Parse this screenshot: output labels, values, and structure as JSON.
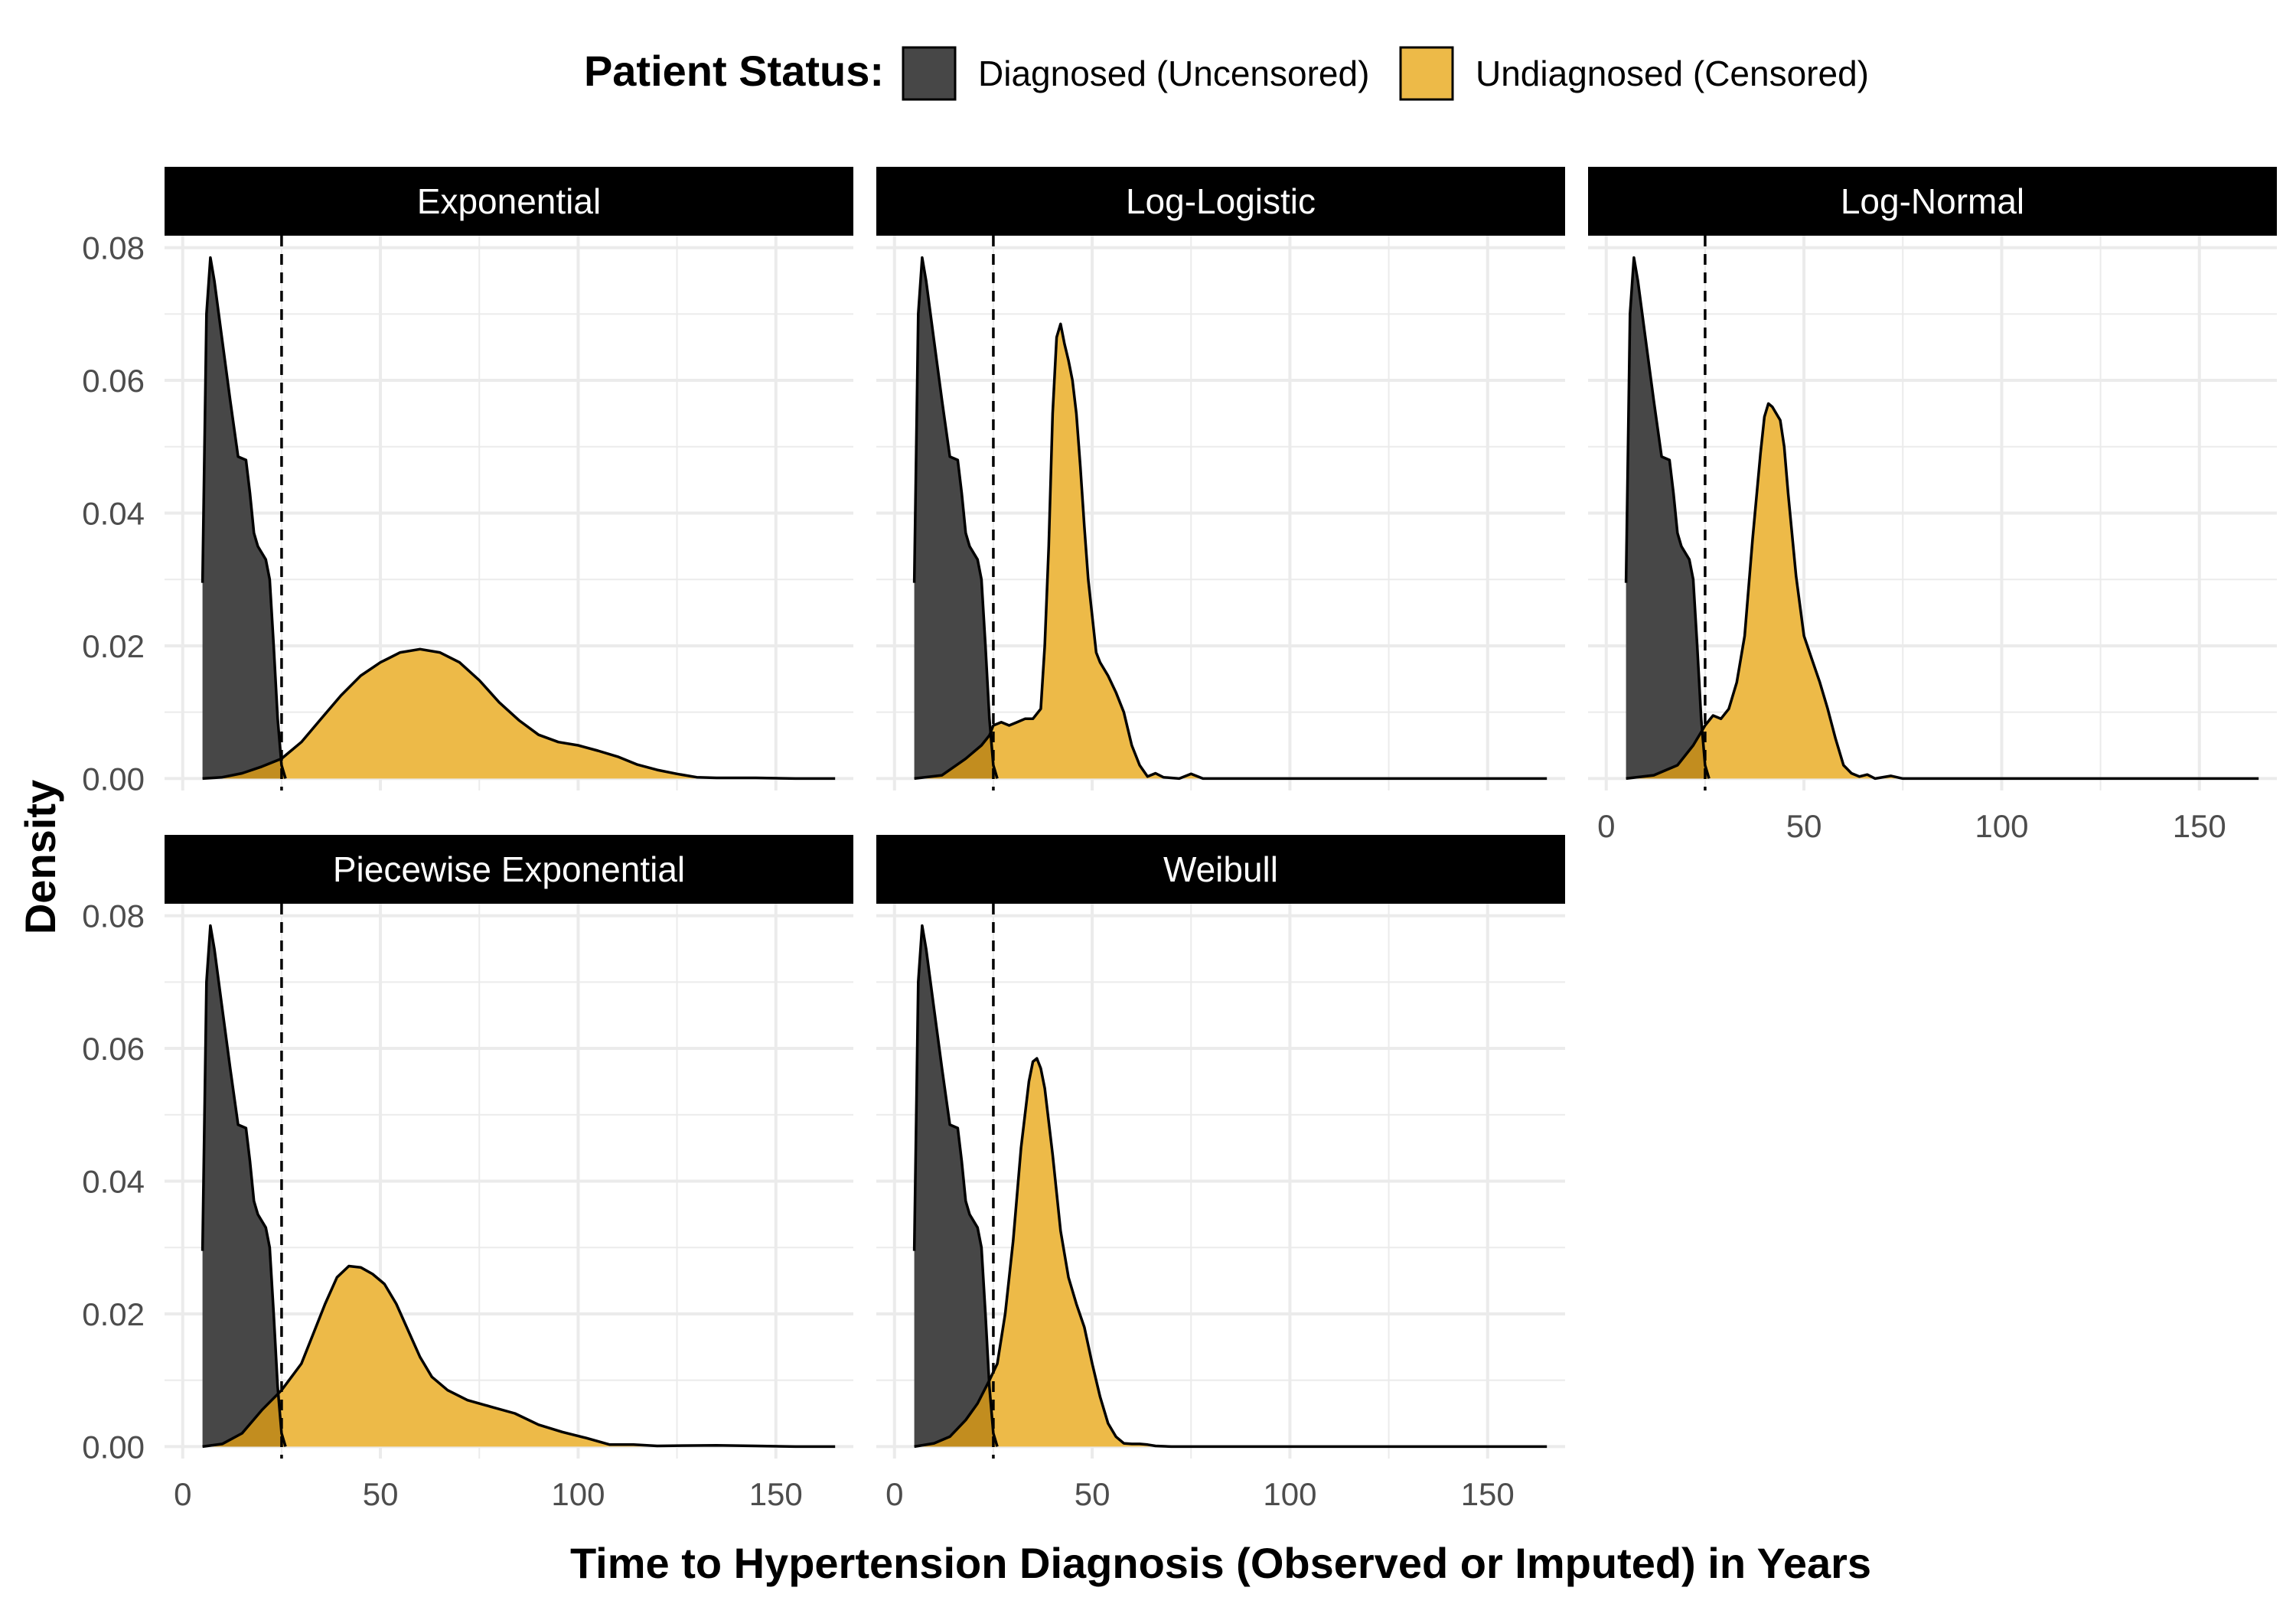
{
  "chart_data": {
    "type": "area",
    "subtype": "density",
    "facet_layout": "3x2 grid, 5 panels",
    "legend_title": "Patient Status:",
    "legend_position": "top",
    "xlabel": "Time to Hypertension Diagnosis (Observed or Imputed) in Years",
    "ylabel": "Density",
    "xlim": [
      0,
      165
    ],
    "ylim": [
      0,
      0.08
    ],
    "x_ticks": [
      0,
      50,
      100,
      150
    ],
    "x_tick_labels": [
      "0",
      "50",
      "100",
      "150"
    ],
    "y_ticks": [
      0,
      0.02,
      0.04,
      0.06,
      0.08
    ],
    "y_tick_labels": [
      "0.00",
      "0.02",
      "0.04",
      "0.06",
      "0.08"
    ],
    "grid": true,
    "reference_line": {
      "x": 25,
      "style": "dashed"
    },
    "colors": {
      "diagnosed": "#474747",
      "undiagnosed": "#EDBA48",
      "overlap": "#C28D1F",
      "strip": "#000000",
      "grid": "#EBEBEB"
    },
    "series_names": [
      "Diagnosed (Uncensored)",
      "Undiagnosed (Censored)"
    ],
    "diagnosed": [
      [
        5,
        0.0295
      ],
      [
        6,
        0.07
      ],
      [
        7,
        0.0785
      ],
      [
        8,
        0.075
      ],
      [
        10,
        0.066
      ],
      [
        12,
        0.057
      ],
      [
        14,
        0.0485
      ],
      [
        16,
        0.048
      ],
      [
        17,
        0.043
      ],
      [
        18,
        0.037
      ],
      [
        19,
        0.035
      ],
      [
        21,
        0.033
      ],
      [
        22,
        0.03
      ],
      [
        23,
        0.02
      ],
      [
        24,
        0.009
      ],
      [
        25,
        0.002
      ],
      [
        26,
        0.0
      ]
    ],
    "panels": [
      {
        "title": "Exponential",
        "undiagnosed": [
          [
            5,
            0.0
          ],
          [
            10,
            0.0002
          ],
          [
            15,
            0.0008
          ],
          [
            20,
            0.0018
          ],
          [
            25,
            0.003
          ],
          [
            30,
            0.0055
          ],
          [
            35,
            0.009
          ],
          [
            40,
            0.0125
          ],
          [
            45,
            0.0155
          ],
          [
            50,
            0.0175
          ],
          [
            55,
            0.019
          ],
          [
            60,
            0.0195
          ],
          [
            65,
            0.019
          ],
          [
            70,
            0.0175
          ],
          [
            75,
            0.0148
          ],
          [
            80,
            0.0115
          ],
          [
            85,
            0.0088
          ],
          [
            90,
            0.0066
          ],
          [
            95,
            0.0055
          ],
          [
            100,
            0.005
          ],
          [
            105,
            0.0042
          ],
          [
            110,
            0.0033
          ],
          [
            115,
            0.0021
          ],
          [
            120,
            0.0013
          ],
          [
            125,
            0.0007
          ],
          [
            130,
            0.0002
          ],
          [
            135,
            0.0001
          ],
          [
            145,
            0.0001
          ],
          [
            155,
            0.0
          ],
          [
            165,
            0.0
          ]
        ]
      },
      {
        "title": "Log-Logistic",
        "undiagnosed": [
          [
            5,
            0.0
          ],
          [
            12,
            0.0005
          ],
          [
            18,
            0.003
          ],
          [
            22,
            0.005
          ],
          [
            24,
            0.0065
          ],
          [
            25,
            0.008
          ],
          [
            27,
            0.0085
          ],
          [
            29,
            0.008
          ],
          [
            31,
            0.0085
          ],
          [
            33,
            0.009
          ],
          [
            35,
            0.009
          ],
          [
            37,
            0.0105
          ],
          [
            38,
            0.02
          ],
          [
            39,
            0.035
          ],
          [
            40,
            0.055
          ],
          [
            41,
            0.0665
          ],
          [
            42,
            0.0685
          ],
          [
            43,
            0.0655
          ],
          [
            44,
            0.063
          ],
          [
            45,
            0.06
          ],
          [
            46,
            0.055
          ],
          [
            47,
            0.047
          ],
          [
            48,
            0.038
          ],
          [
            49,
            0.03
          ],
          [
            50,
            0.0245
          ],
          [
            51,
            0.019
          ],
          [
            52,
            0.0175
          ],
          [
            54,
            0.0155
          ],
          [
            56,
            0.013
          ],
          [
            58,
            0.01
          ],
          [
            60,
            0.005
          ],
          [
            62,
            0.002
          ],
          [
            64,
            0.0003
          ],
          [
            66,
            0.0008
          ],
          [
            68,
            0.0002
          ],
          [
            72,
            0.0
          ],
          [
            75,
            0.0007
          ],
          [
            78,
            0.0
          ],
          [
            165,
            0.0
          ]
        ]
      },
      {
        "title": "Log-Normal",
        "undiagnosed": [
          [
            5,
            0.0
          ],
          [
            12,
            0.0005
          ],
          [
            18,
            0.002
          ],
          [
            22,
            0.005
          ],
          [
            24,
            0.007
          ],
          [
            25,
            0.008
          ],
          [
            27,
            0.0095
          ],
          [
            29,
            0.009
          ],
          [
            31,
            0.0105
          ],
          [
            33,
            0.0145
          ],
          [
            35,
            0.0215
          ],
          [
            37,
            0.036
          ],
          [
            39,
            0.049
          ],
          [
            40,
            0.0545
          ],
          [
            41,
            0.0565
          ],
          [
            42,
            0.056
          ],
          [
            43,
            0.055
          ],
          [
            44,
            0.054
          ],
          [
            45,
            0.05
          ],
          [
            46,
            0.043
          ],
          [
            48,
            0.0305
          ],
          [
            50,
            0.0215
          ],
          [
            52,
            0.018
          ],
          [
            54,
            0.0145
          ],
          [
            56,
            0.0105
          ],
          [
            58,
            0.006
          ],
          [
            60,
            0.002
          ],
          [
            62,
            0.0008
          ],
          [
            64,
            0.0003
          ],
          [
            66,
            0.0006
          ],
          [
            68,
            0.0
          ],
          [
            72,
            0.0004
          ],
          [
            75,
            0.0
          ],
          [
            165,
            0.0
          ]
        ]
      },
      {
        "title": "Piecewise Exponential",
        "undiagnosed": [
          [
            5,
            0.0
          ],
          [
            10,
            0.0004
          ],
          [
            15,
            0.002
          ],
          [
            20,
            0.0055
          ],
          [
            25,
            0.0085
          ],
          [
            30,
            0.0125
          ],
          [
            33,
            0.017
          ],
          [
            36,
            0.0215
          ],
          [
            39,
            0.0255
          ],
          [
            42,
            0.0272
          ],
          [
            45,
            0.027
          ],
          [
            48,
            0.026
          ],
          [
            51,
            0.0245
          ],
          [
            54,
            0.0215
          ],
          [
            57,
            0.0175
          ],
          [
            60,
            0.0135
          ],
          [
            63,
            0.0105
          ],
          [
            67,
            0.0085
          ],
          [
            72,
            0.007
          ],
          [
            78,
            0.006
          ],
          [
            84,
            0.005
          ],
          [
            90,
            0.0033
          ],
          [
            96,
            0.0022
          ],
          [
            102,
            0.0013
          ],
          [
            108,
            0.0003
          ],
          [
            114,
            0.0003
          ],
          [
            120,
            0.0001
          ],
          [
            135,
            0.0002
          ],
          [
            145,
            0.0001
          ],
          [
            155,
            0.0
          ],
          [
            165,
            0.0
          ]
        ]
      },
      {
        "title": "Weibull",
        "undiagnosed": [
          [
            5,
            0.0
          ],
          [
            10,
            0.0005
          ],
          [
            14,
            0.0015
          ],
          [
            18,
            0.004
          ],
          [
            21,
            0.0065
          ],
          [
            24,
            0.01
          ],
          [
            26,
            0.0125
          ],
          [
            28,
            0.02
          ],
          [
            30,
            0.031
          ],
          [
            32,
            0.045
          ],
          [
            34,
            0.055
          ],
          [
            35,
            0.058
          ],
          [
            36,
            0.0585
          ],
          [
            37,
            0.057
          ],
          [
            38,
            0.054
          ],
          [
            40,
            0.044
          ],
          [
            42,
            0.0325
          ],
          [
            44,
            0.0255
          ],
          [
            46,
            0.0215
          ],
          [
            48,
            0.018
          ],
          [
            50,
            0.0125
          ],
          [
            52,
            0.0075
          ],
          [
            54,
            0.0035
          ],
          [
            56,
            0.0015
          ],
          [
            58,
            0.0005
          ],
          [
            60,
            0.0004
          ],
          [
            62,
            0.0004
          ],
          [
            64,
            0.0003
          ],
          [
            66,
            0.0001
          ],
          [
            70,
            0.0
          ],
          [
            165,
            0.0
          ]
        ]
      }
    ]
  }
}
